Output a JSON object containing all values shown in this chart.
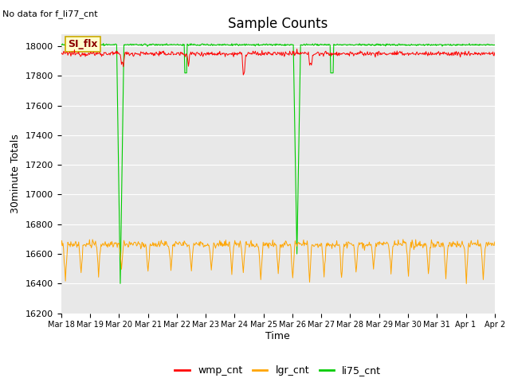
{
  "title": "Sample Counts",
  "no_data_label": "No data for f_li77_cnt",
  "ylabel": "30minute Totals",
  "xlabel": "Time",
  "annotation": "SI_flx",
  "ylim": [
    16200,
    18080
  ],
  "yticks": [
    16200,
    16400,
    16600,
    16800,
    17000,
    17200,
    17400,
    17600,
    17800,
    18000
  ],
  "x_tick_labels": [
    "Mar 18",
    "Mar 19",
    "Mar 20",
    "Mar 21",
    "Mar 22",
    "Mar 23",
    "Mar 24",
    "Mar 25",
    "Mar 26",
    "Mar 27",
    "Mar 28",
    "Mar 29",
    "Mar 30",
    "Mar 31",
    "Apr 1",
    "Apr 2"
  ],
  "wmp_base": 17950,
  "wmp_noise": 8,
  "lgr_base": 16665,
  "lgr_noise": 12,
  "li75_base": 18010,
  "colors": {
    "wmp": "#ff0000",
    "lgr": "#ffa500",
    "li75": "#00cc00",
    "background": "#e8e8e8",
    "annotation_bg": "#ffffcc",
    "annotation_border": "#ccaa00"
  },
  "legend_labels": [
    "wmp_cnt",
    "lgr_cnt",
    "li75_cnt"
  ],
  "n_days": 15,
  "pts_per_day": 48
}
